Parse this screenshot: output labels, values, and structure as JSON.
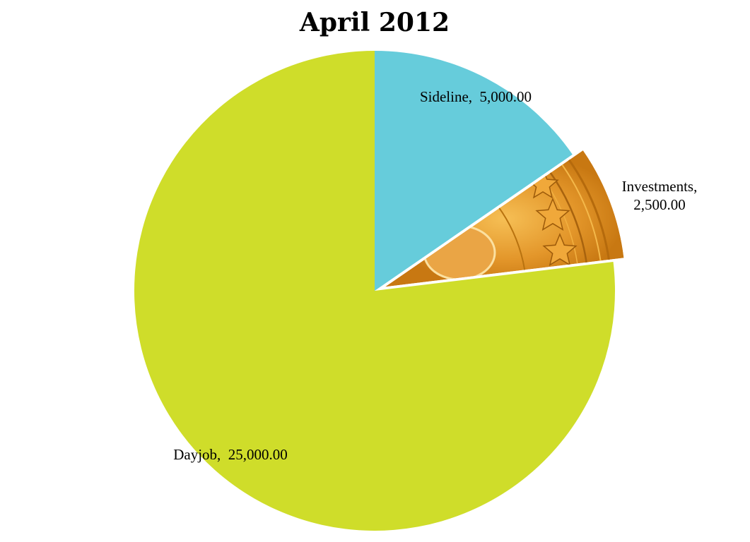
{
  "chart_data": {
    "type": "pie",
    "title": "April 2012",
    "categories": [
      "Sideline",
      "Investments",
      "Dayjob"
    ],
    "values": [
      5000,
      2500,
      25000
    ],
    "value_labels": [
      "5,000.00",
      "2,500.00",
      "25,000.00"
    ],
    "data_labels": [
      [
        "Sideline,  5,000.00"
      ],
      [
        "Investments,",
        "2,500.00"
      ],
      [
        "Dayjob,  25,000.00"
      ]
    ],
    "colors": [
      "#66ccdb",
      "#e3962a",
      "#cfdd2a"
    ],
    "fill_styles": [
      "solid",
      "coin-picture",
      "solid"
    ],
    "exploded": "Investments",
    "legend": "none",
    "start_angle_deg": 0,
    "direction": "clockwise"
  }
}
